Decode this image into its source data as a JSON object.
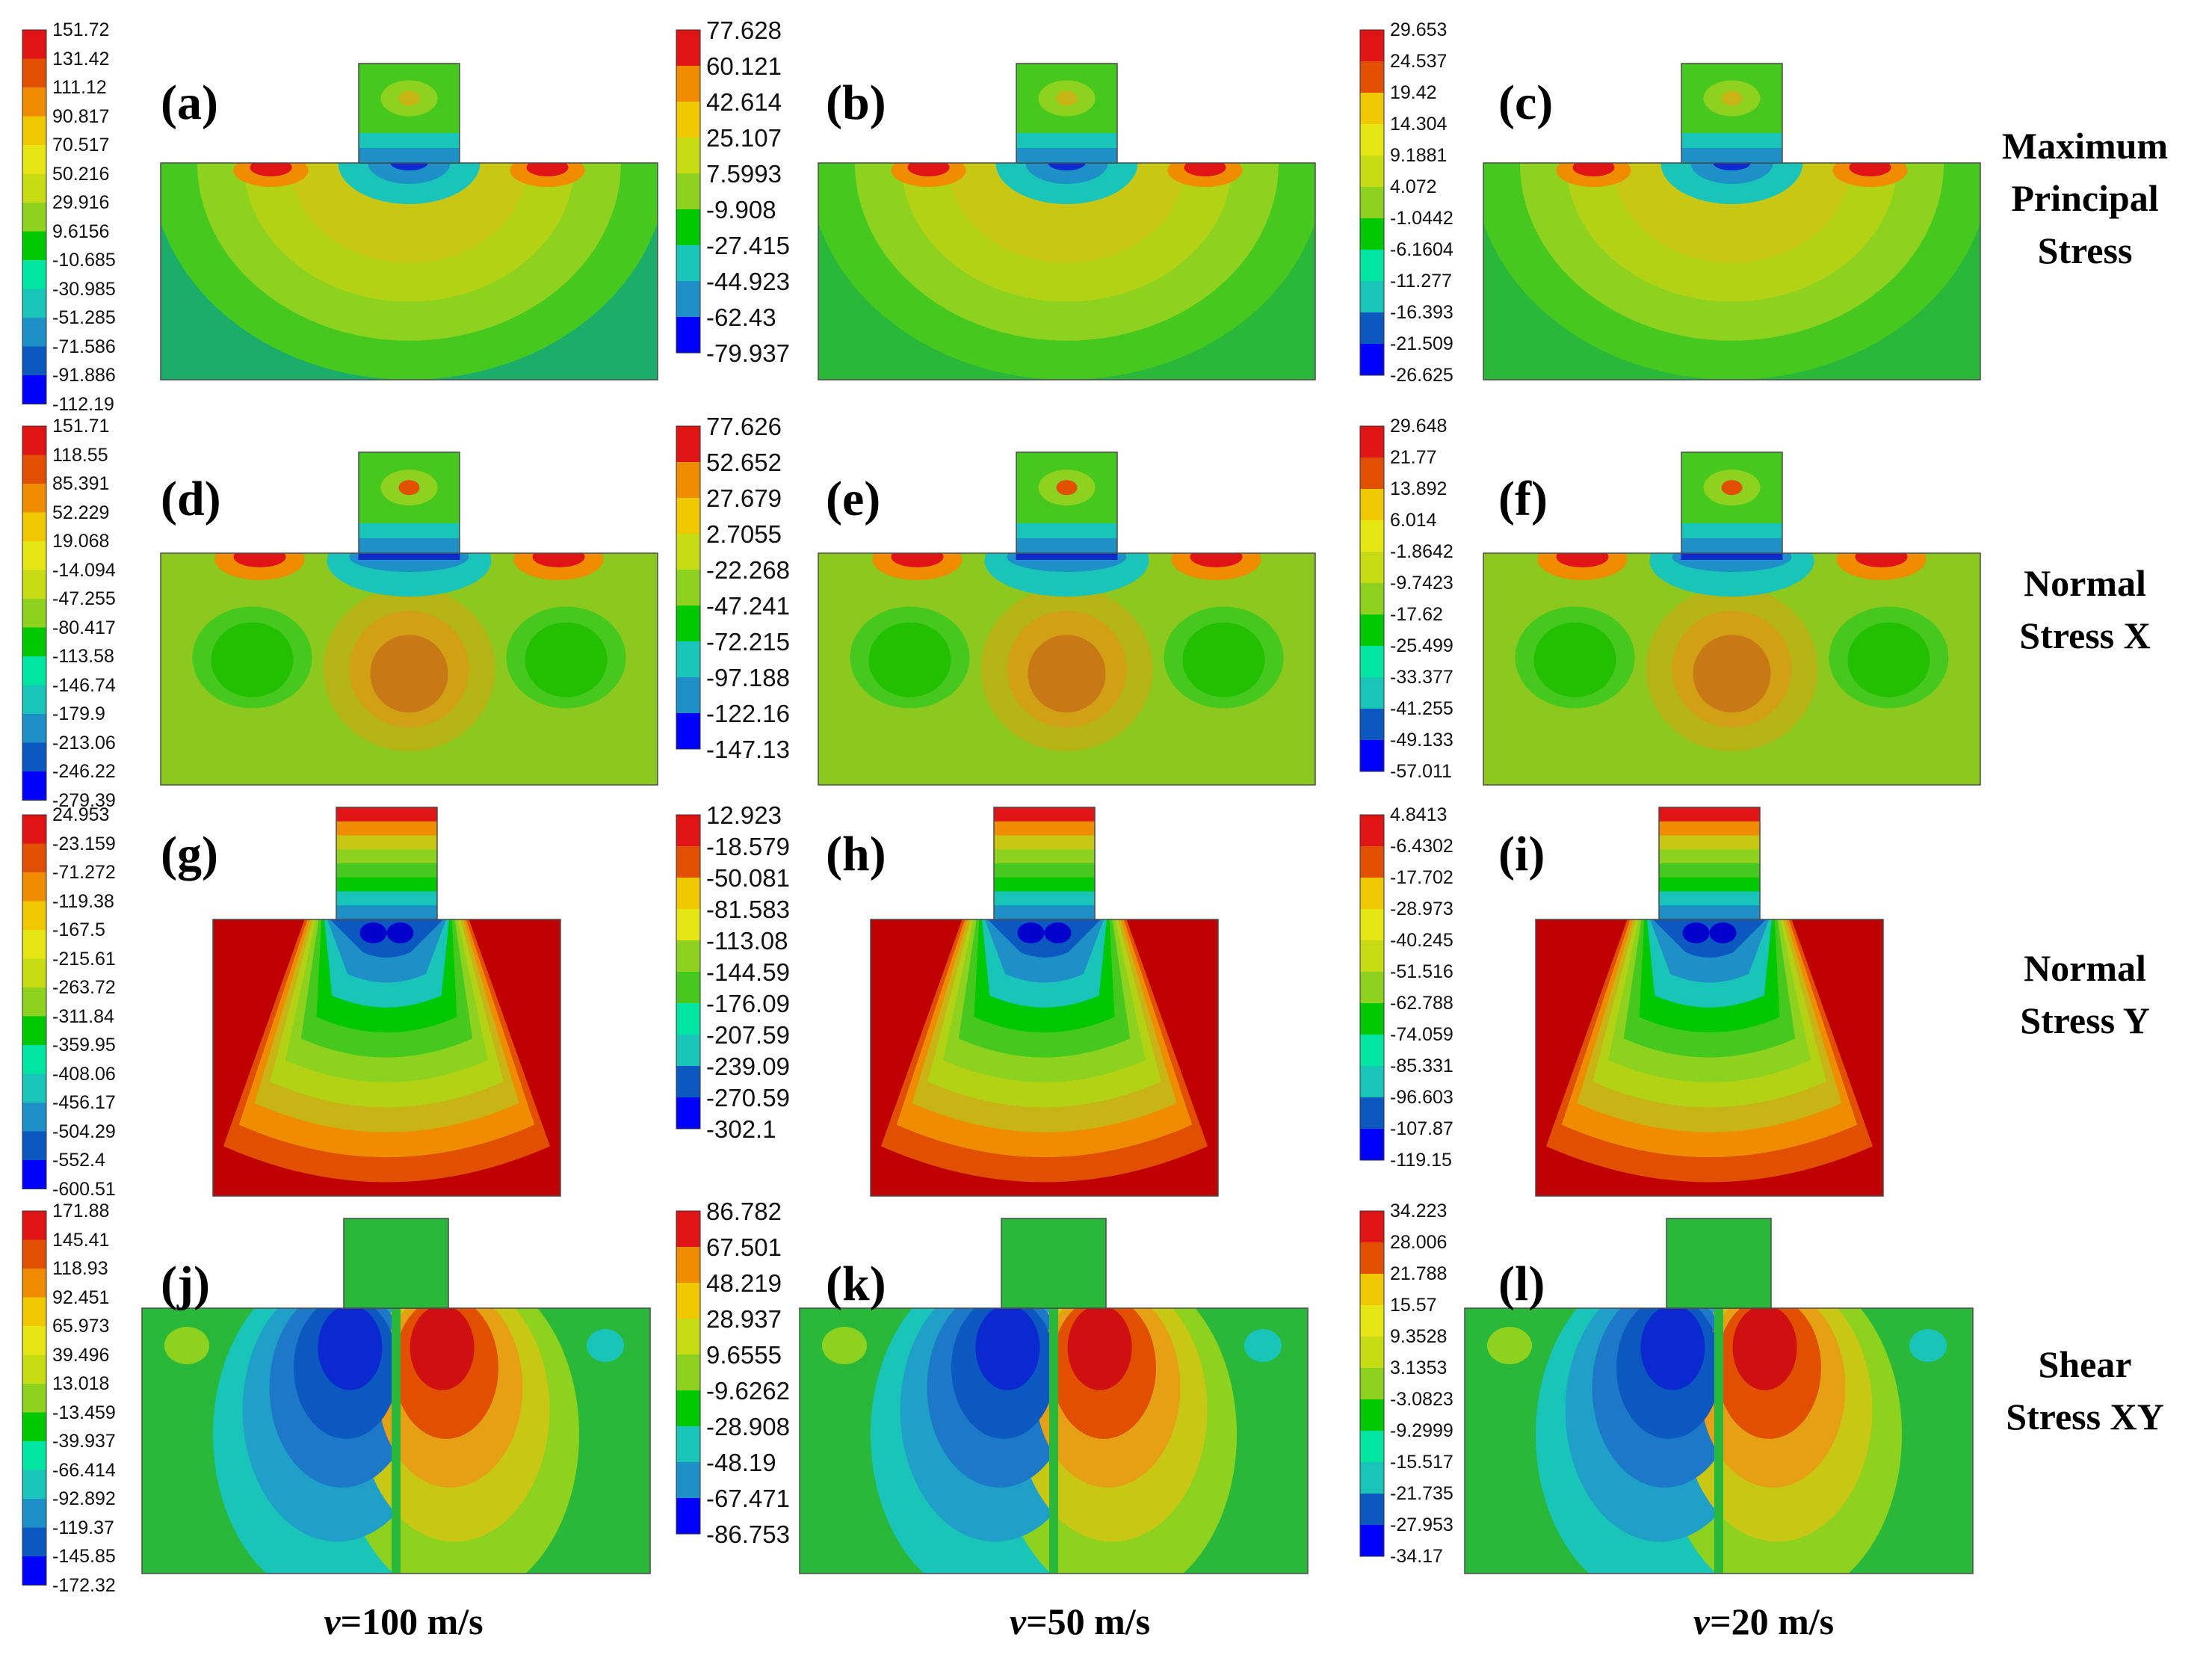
{
  "row_labels": [
    [
      "Maximum",
      "Principal",
      "Stress"
    ],
    [
      "Normal",
      "Stress X"
    ],
    [
      "Normal",
      "Stress Y"
    ],
    [
      "Shear",
      "Stress XY"
    ]
  ],
  "column_labels": [
    {
      "var": "v",
      "rest": "=100 m/s"
    },
    {
      "var": "v",
      "rest": "=50 m/s"
    },
    {
      "var": "v",
      "rest": "=20 m/s"
    }
  ],
  "colors": {
    "scale": [
      "#0000ff",
      "#0b58c0",
      "#1e90c8",
      "#19c4b8",
      "#00e6a0",
      "#00c800",
      "#46c81e",
      "#8cd21e",
      "#c8dc14",
      "#e6e614",
      "#f0c800",
      "#f08c00",
      "#e05000",
      "#e01414"
    ],
    "background": "#ffffff"
  },
  "panels": [
    {
      "letter": "(a)",
      "type": "maxp",
      "legend": [
        "151.72",
        "131.42",
        "111.12",
        "90.817",
        "70.517",
        "50.216",
        "29.916",
        "9.6156",
        "-10.685",
        "-30.985",
        "-51.285",
        "-71.586",
        "-91.886",
        "-112.19"
      ]
    },
    {
      "letter": "(b)",
      "type": "maxp",
      "legend": [
        "77.628",
        "60.121",
        "42.614",
        "25.107",
        "7.5993",
        "-9.908",
        "-27.415",
        "-44.923",
        "-62.43",
        "-79.937"
      ]
    },
    {
      "letter": "(c)",
      "type": "maxp",
      "legend": [
        "29.653",
        "24.537",
        "19.42",
        "14.304",
        "9.1881",
        "4.072",
        "-1.0442",
        "-6.1604",
        "-11.277",
        "-16.393",
        "-21.509",
        "-26.625"
      ]
    },
    {
      "letter": "(d)",
      "type": "sx",
      "legend": [
        "151.71",
        "118.55",
        "85.391",
        "52.229",
        "19.068",
        "-14.094",
        "-47.255",
        "-80.417",
        "-113.58",
        "-146.74",
        "-179.9",
        "-213.06",
        "-246.22",
        "-279.39"
      ]
    },
    {
      "letter": "(e)",
      "type": "sx",
      "legend": [
        "77.626",
        "52.652",
        "27.679",
        "2.7055",
        "-22.268",
        "-47.241",
        "-72.215",
        "-97.188",
        "-122.16",
        "-147.13"
      ]
    },
    {
      "letter": "(f)",
      "type": "sx",
      "legend": [
        "29.648",
        "21.77",
        "13.892",
        "6.014",
        "-1.8642",
        "-9.7423",
        "-17.62",
        "-25.499",
        "-33.377",
        "-41.255",
        "-49.133",
        "-57.011"
      ]
    },
    {
      "letter": "(g)",
      "type": "sy",
      "legend": [
        "24.953",
        "-23.159",
        "-71.272",
        "-119.38",
        "-167.5",
        "-215.61",
        "-263.72",
        "-311.84",
        "-359.95",
        "-408.06",
        "-456.17",
        "-504.29",
        "-552.4",
        "-600.51"
      ]
    },
    {
      "letter": "(h)",
      "type": "sy",
      "legend": [
        "12.923",
        "-18.579",
        "-50.081",
        "-81.583",
        "-113.08",
        "-144.59",
        "-176.09",
        "-207.59",
        "-239.09",
        "-270.59",
        "-302.1"
      ]
    },
    {
      "letter": "(i)",
      "type": "sy",
      "legend": [
        "4.8413",
        "-6.4302",
        "-17.702",
        "-28.973",
        "-40.245",
        "-51.516",
        "-62.788",
        "-74.059",
        "-85.331",
        "-96.603",
        "-107.87",
        "-119.15"
      ]
    },
    {
      "letter": "(j)",
      "type": "sxy",
      "legend": [
        "171.88",
        "145.41",
        "118.93",
        "92.451",
        "65.973",
        "39.496",
        "13.018",
        "-13.459",
        "-39.937",
        "-66.414",
        "-92.892",
        "-119.37",
        "-145.85",
        "-172.32"
      ]
    },
    {
      "letter": "(k)",
      "type": "sxy",
      "legend": [
        "86.782",
        "67.501",
        "48.219",
        "28.937",
        "9.6555",
        "-9.6262",
        "-28.908",
        "-48.19",
        "-67.471",
        "-86.753"
      ]
    },
    {
      "letter": "(l)",
      "type": "sxy",
      "legend": [
        "34.223",
        "28.006",
        "21.788",
        "15.57",
        "9.3528",
        "3.1353",
        "-3.0823",
        "-9.2999",
        "-15.517",
        "-21.735",
        "-27.953",
        "-34.17"
      ]
    }
  ]
}
